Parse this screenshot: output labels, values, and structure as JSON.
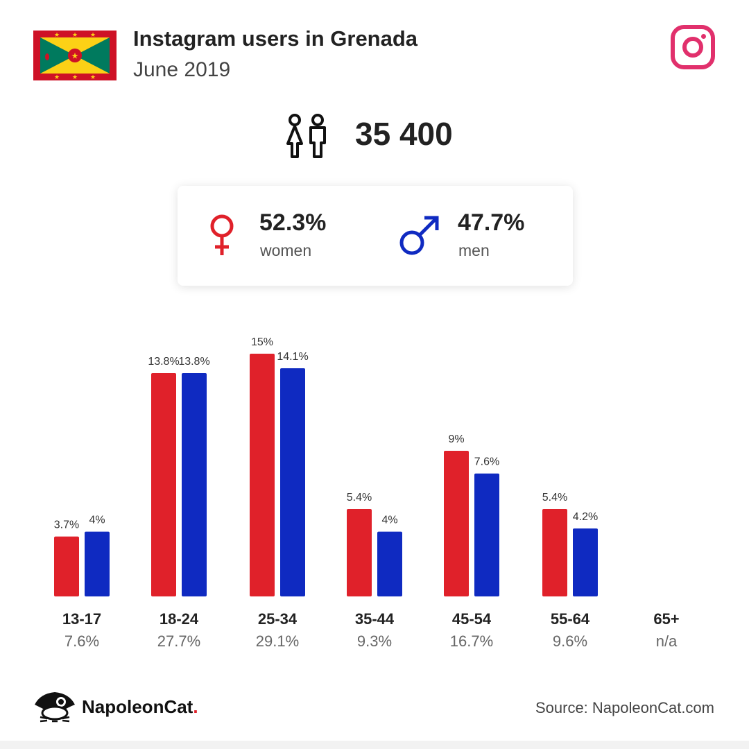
{
  "header": {
    "title": "Instagram users in Grenada",
    "subtitle": "June 2019",
    "flag_icon": "grenada-flag",
    "platform_icon": "instagram-icon"
  },
  "total": {
    "icon": "people-icon",
    "value": "35 400"
  },
  "gender": {
    "women": {
      "icon": "female-icon",
      "percent": "52.3%",
      "label": "women"
    },
    "men": {
      "icon": "male-icon",
      "percent": "47.7%",
      "label": "men"
    }
  },
  "colors": {
    "women": "#e0212a",
    "men": "#0f2ac1",
    "instagram": "#e1306c"
  },
  "chart_data": {
    "type": "bar",
    "categories": [
      "13-17",
      "18-24",
      "25-34",
      "35-44",
      "45-54",
      "55-64",
      "65+"
    ],
    "category_totals": [
      "7.6%",
      "27.7%",
      "29.1%",
      "9.3%",
      "16.7%",
      "9.6%",
      "n/a"
    ],
    "series": [
      {
        "name": "women",
        "values": [
          3.7,
          13.8,
          15,
          5.4,
          9,
          5.4,
          null
        ],
        "labels": [
          "3.7%",
          "13.8%",
          "15%",
          "5.4%",
          "9%",
          "5.4%",
          ""
        ]
      },
      {
        "name": "men",
        "values": [
          4,
          13.8,
          14.1,
          4,
          7.6,
          4.2,
          null
        ],
        "labels": [
          "4%",
          "13.8%",
          "14.1%",
          "4%",
          "7.6%",
          "4.2%",
          ""
        ]
      }
    ],
    "title": "",
    "xlabel": "",
    "ylabel": "",
    "grid": false
  },
  "footer": {
    "brand_name": "NapoleonCat",
    "brand_dot": ".",
    "logo_icon": "napoleoncat-logo-icon",
    "source": "Source: NapoleonCat.com"
  }
}
